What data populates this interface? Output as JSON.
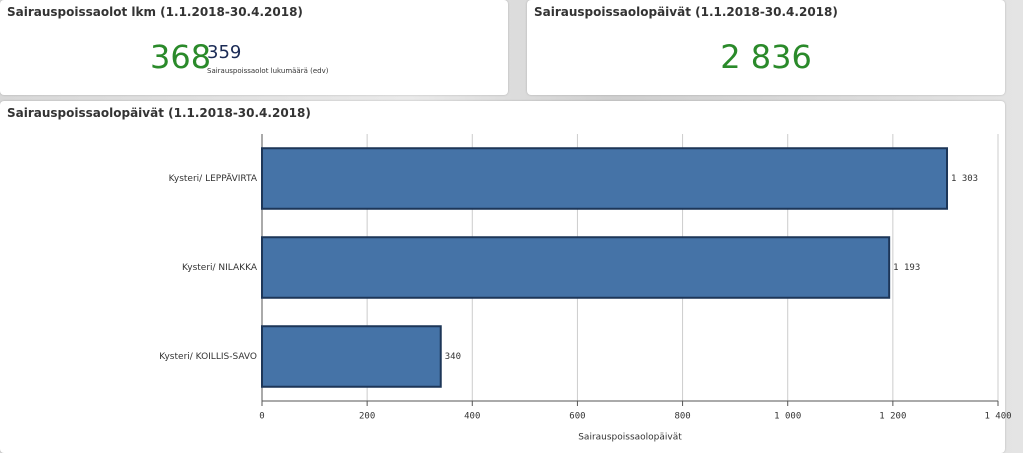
{
  "kpis": [
    {
      "title": "Sairauspoissaolot lkm (1.1.2018-30.4.2018)",
      "value": "368",
      "secondary": "359",
      "sublabel": "Sairauspoissaolot lukumäärä (edv)"
    },
    {
      "title": "Sairauspoissaolopäivät (1.1.2018-30.4.2018)",
      "value": "2 836"
    }
  ],
  "chart_data": {
    "type": "hbar",
    "title": "Sairauspoissaolopäivät (1.1.2018-30.4.2018)",
    "categories": [
      "Kysteri/ LEPPÄVIRTA",
      "Kysteri/ NILAKKA",
      "Kysteri/ KOILLIS-SAVO"
    ],
    "values": [
      1303,
      1193,
      340
    ],
    "value_labels": [
      "1 303",
      "1 193",
      "340"
    ],
    "color": "#4573a7",
    "xlabel": "Sairauspoissaolopäivät",
    "xlim": [
      0,
      1400
    ],
    "xticks": [
      0,
      200,
      400,
      600,
      800,
      {
        "value": 1000,
        "label": "1 000"
      },
      {
        "value": 1200,
        "label": "1 200"
      },
      {
        "value": 1400,
        "label": "1 400"
      }
    ],
    "grid": true
  }
}
